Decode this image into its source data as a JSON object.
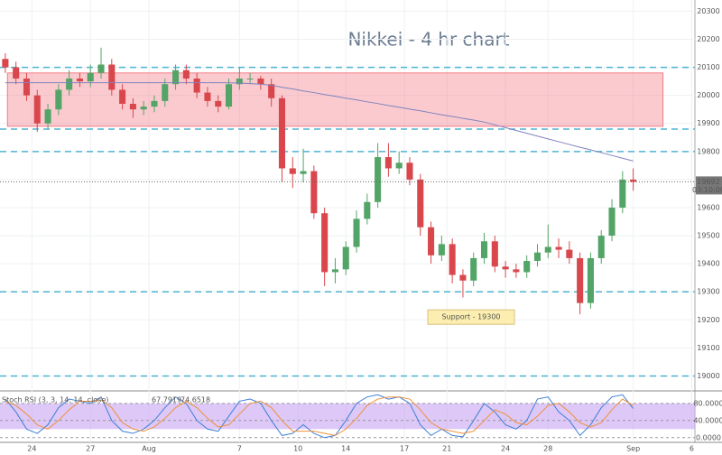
{
  "chart_data": [
    {
      "type": "candlestick",
      "title": "Nikkei - 4 hr chart",
      "open": [
        20130,
        20100,
        20060,
        20000,
        19900,
        19950,
        20020,
        20060,
        20050,
        20080,
        20110,
        20020,
        19970,
        19950,
        19960,
        19980,
        20040,
        20090,
        20060,
        20010,
        19980,
        19960,
        20040,
        20060,
        20060,
        20040,
        19990,
        19740,
        19720,
        19730,
        19580,
        19370,
        19380,
        19460,
        19560,
        19620,
        19780,
        19740,
        19760,
        19700,
        19530,
        19430,
        19470,
        19360,
        19340,
        19420,
        19480,
        19390,
        19380,
        19370,
        19410,
        19440,
        19460,
        19450,
        19420,
        19260,
        19420,
        19500,
        19600,
        19700
      ],
      "high": [
        20150,
        20120,
        20080,
        20020,
        19970,
        20040,
        20090,
        20080,
        20110,
        20170,
        20130,
        20040,
        19990,
        19980,
        20000,
        20060,
        20110,
        20110,
        20080,
        20030,
        20000,
        20060,
        20100,
        20080,
        20070,
        20060,
        20000,
        19780,
        19810,
        19750,
        19600,
        19420,
        19480,
        19590,
        19650,
        19830,
        19830,
        19800,
        19780,
        19720,
        19550,
        19500,
        19490,
        19380,
        19440,
        19510,
        19500,
        19410,
        19400,
        19430,
        19470,
        19540,
        19490,
        19480,
        19440,
        19440,
        19520,
        19630,
        19730,
        19740
      ],
      "low": [
        20080,
        20040,
        19980,
        19870,
        19880,
        19930,
        20000,
        20030,
        20030,
        20060,
        20000,
        19950,
        19920,
        19930,
        19940,
        19960,
        20020,
        20040,
        19990,
        19960,
        19940,
        19950,
        20020,
        20040,
        20020,
        19960,
        19690,
        19670,
        19690,
        19560,
        19320,
        19330,
        19360,
        19440,
        19540,
        19600,
        19710,
        19720,
        19680,
        19500,
        19400,
        19410,
        19330,
        19280,
        19320,
        19400,
        19370,
        19350,
        19350,
        19350,
        19390,
        19420,
        19420,
        19400,
        19220,
        19240,
        19400,
        19480,
        19580,
        19660
      ],
      "close": [
        20100,
        20060,
        20000,
        19900,
        19950,
        20020,
        20060,
        20050,
        20080,
        20110,
        20020,
        19970,
        19950,
        19960,
        19980,
        20040,
        20090,
        20060,
        20010,
        19980,
        19960,
        20040,
        20060,
        20060,
        20040,
        19990,
        19740,
        19720,
        19730,
        19580,
        19370,
        19380,
        19460,
        19560,
        19620,
        19780,
        19740,
        19760,
        19700,
        19530,
        19430,
        19470,
        19360,
        19340,
        19420,
        19480,
        19390,
        19380,
        19370,
        19410,
        19440,
        19460,
        19450,
        19420,
        19260,
        19420,
        19500,
        19600,
        19700,
        19692
      ],
      "up_color": "#53a467",
      "down_color": "#d9474c",
      "ma": {
        "color": "#8083bd",
        "values": [
          20045,
          20045,
          20045,
          20045,
          20045,
          20045,
          20045,
          20045,
          20045,
          20045,
          20045,
          20045,
          20045,
          20045,
          20045,
          20045,
          20045,
          20045,
          20045,
          20045,
          20045,
          20045,
          20044,
          20042,
          20040,
          20036,
          20029,
          20023,
          20016,
          20010,
          20003,
          19997,
          19990,
          19984,
          19977,
          19971,
          19964,
          19958,
          19951,
          19945,
          19938,
          19931,
          19925,
          19918,
          19912,
          19905,
          19895,
          19885,
          19875,
          19865,
          19855,
          19845,
          19835,
          19825,
          19815,
          19806,
          19796,
          19786,
          19776,
          19766
        ]
      },
      "levels": [
        20100,
        19880,
        19800,
        19300,
        19000
      ],
      "level_color": "#4db3d1",
      "zone": {
        "from": 19890,
        "to": 20080,
        "color": "#f27b86"
      },
      "annotation": "Support - 19300",
      "last_price": 19692,
      "countdown": "03:10:00",
      "xlim": [
        -0.5,
        64.8
      ],
      "xticks": [
        {
          "value": 2.5,
          "label": "24"
        },
        {
          "value": 8,
          "label": "27"
        },
        {
          "value": 13.5,
          "label": "Aug"
        },
        {
          "value": 22,
          "label": "7"
        },
        {
          "value": 27.5,
          "label": "10"
        },
        {
          "value": 32,
          "label": "14"
        },
        {
          "value": 37.5,
          "label": "17"
        },
        {
          "value": 41.5,
          "label": "21"
        },
        {
          "value": 47,
          "label": "24"
        },
        {
          "value": 51,
          "label": "28"
        },
        {
          "value": 59,
          "label": "Sep"
        },
        {
          "value": 64.5,
          "label": "6"
        }
      ],
      "ylim": [
        18950,
        20340
      ],
      "yticks": [
        20300,
        20200,
        20100,
        20000,
        19900,
        19800,
        19700,
        19600,
        19500,
        19400,
        19300,
        19200,
        19100,
        19000
      ],
      "grid": true
    },
    {
      "type": "line",
      "title": "Stoch RSI (3, 3, 14, 14, close)",
      "series": [
        {
          "color": "#3d7fd9",
          "values": [
            90,
            60,
            20,
            10,
            30,
            70,
            90,
            85,
            80,
            95,
            40,
            15,
            10,
            20,
            40,
            70,
            95,
            80,
            40,
            20,
            15,
            50,
            85,
            90,
            80,
            40,
            5,
            10,
            30,
            10,
            0,
            5,
            40,
            80,
            95,
            100,
            90,
            95,
            80,
            30,
            5,
            20,
            5,
            2,
            40,
            80,
            60,
            30,
            20,
            40,
            90,
            95,
            60,
            40,
            5,
            30,
            70,
            95,
            100,
            67.7919
          ]
        },
        {
          "color": "#f0913a",
          "values": [
            85,
            75,
            55,
            30,
            20,
            40,
            65,
            85,
            85,
            88,
            70,
            35,
            20,
            15,
            25,
            45,
            70,
            85,
            70,
            45,
            25,
            30,
            55,
            80,
            85,
            70,
            40,
            15,
            15,
            15,
            10,
            5,
            20,
            45,
            75,
            90,
            95,
            95,
            90,
            65,
            35,
            20,
            15,
            10,
            15,
            40,
            65,
            55,
            35,
            30,
            50,
            75,
            80,
            60,
            35,
            25,
            35,
            65,
            90,
            74.6518
          ]
        }
      ],
      "band": [
        20,
        80
      ],
      "band_color": "#c7a3f2",
      "ylim": [
        -11,
        107
      ],
      "yticks": [
        {
          "value": 80,
          "label": "80.0000"
        },
        {
          "value": 40,
          "label": "40.0000"
        },
        {
          "value": 0,
          "label": "0.0000"
        }
      ]
    }
  ]
}
